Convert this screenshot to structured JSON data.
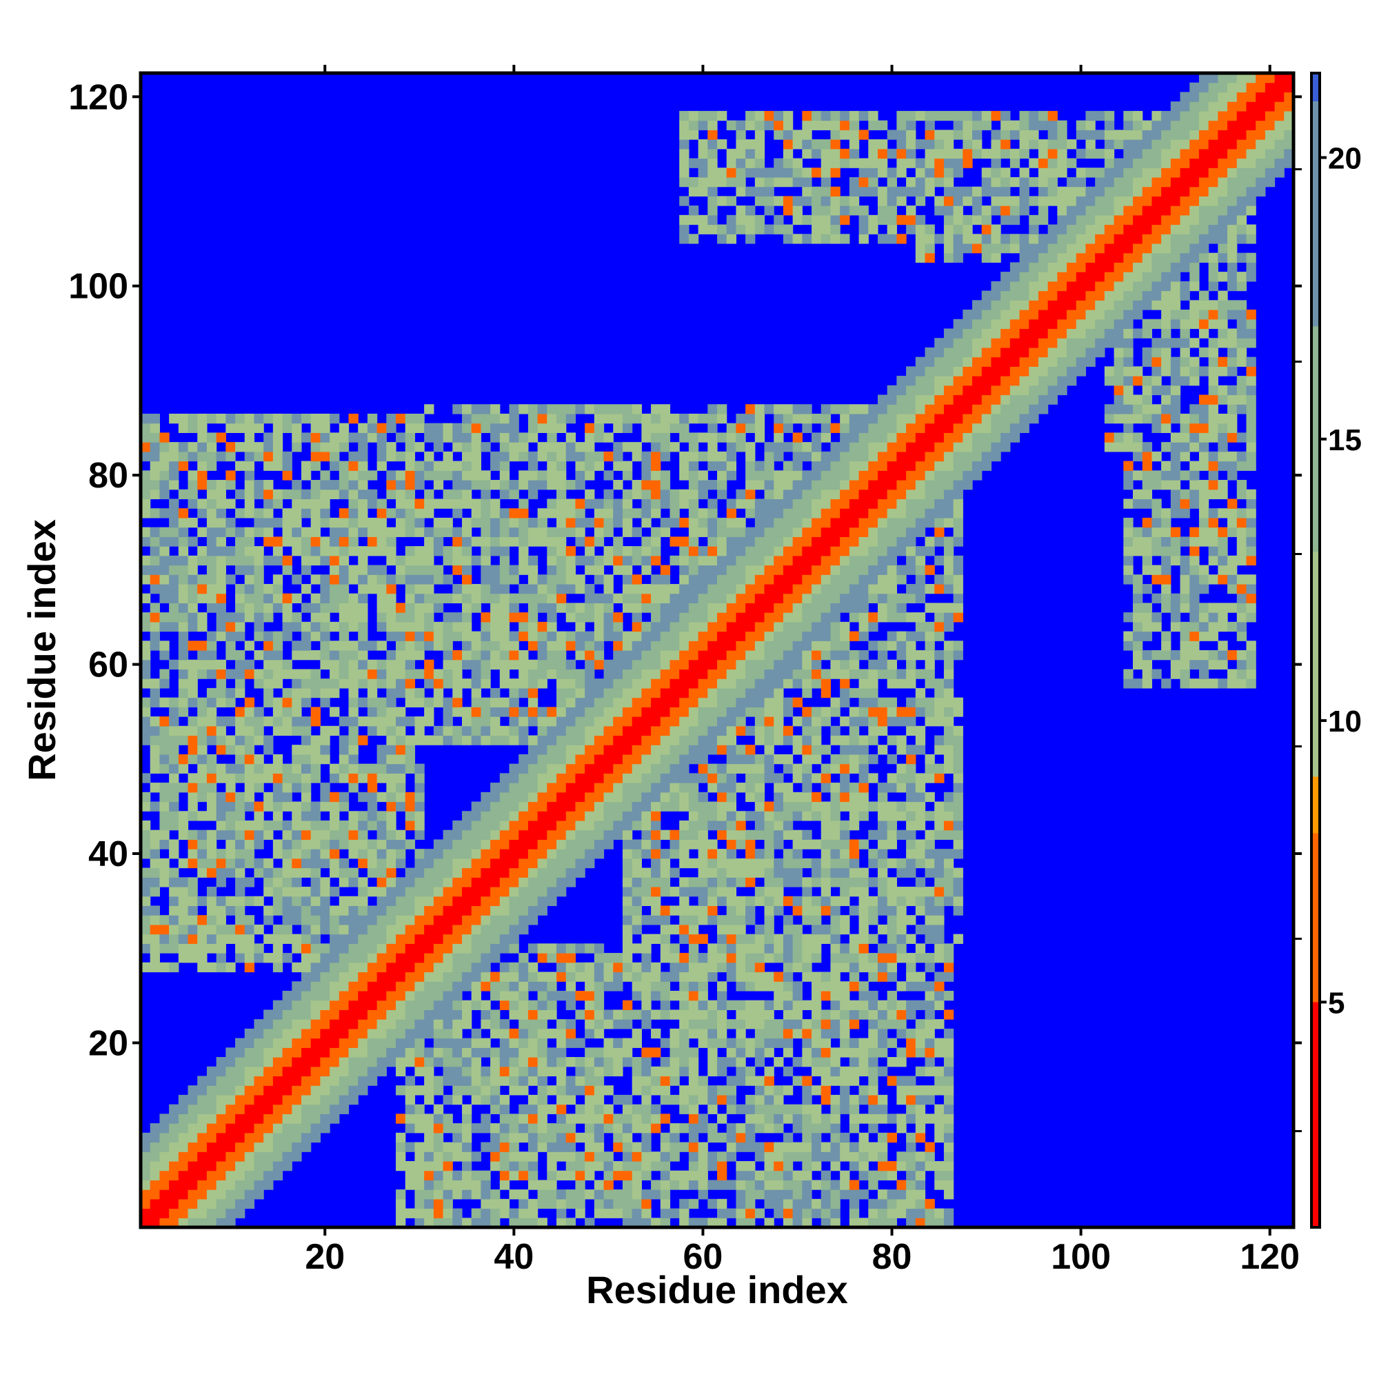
{
  "chart_data": {
    "type": "heatmap",
    "title": "",
    "xlabel": "Residue index",
    "ylabel": "Residue index",
    "xlim": [
      1,
      122
    ],
    "ylim": [
      1,
      122
    ],
    "n_residues": 122,
    "x_ticks": [
      20,
      40,
      60,
      80,
      100,
      120
    ],
    "y_ticks": [
      20,
      40,
      60,
      80,
      100,
      120
    ],
    "x_tick_labels": [
      "20",
      "40",
      "60",
      "80",
      "100",
      "120"
    ],
    "y_tick_labels": [
      "20",
      "40",
      "60",
      "80",
      "100",
      "120"
    ],
    "colorbar": {
      "range": [
        1,
        21.5
      ],
      "ticks": [
        5,
        10,
        15,
        20
      ],
      "tick_labels": [
        "5",
        "10",
        "15",
        "20"
      ],
      "stops": [
        {
          "value": 1,
          "color": "#ff0000"
        },
        {
          "value": 4,
          "color": "#ff0000"
        },
        {
          "value": 5,
          "color": "#ff6600"
        },
        {
          "value": 8,
          "color": "#ff9900"
        },
        {
          "value": 9,
          "color": "#a6c58c"
        },
        {
          "value": 13,
          "color": "#8fb592"
        },
        {
          "value": 17,
          "color": "#6f93aa"
        },
        {
          "value": 21,
          "color": "#3a5fd6"
        },
        {
          "value": 21.5,
          "color": "#0000ff"
        }
      ]
    },
    "value_description": "distance map; red = close contact on diagonal, orange/green = intermediate, blue = far",
    "features": {
      "diagonal_core_halfwidth": 1.2,
      "diagonal_band_halfwidth": 9,
      "off_diagonal_regions": [
        {
          "x_range": [
            1,
            30
          ],
          "y_range": [
            44,
            85
          ],
          "label": "upper-left lobe"
        },
        {
          "x_range": [
            30,
            58
          ],
          "y_range": [
            52,
            87
          ],
          "label": "upper-middle lobe"
        },
        {
          "x_range": [
            28,
            57
          ],
          "y_range": [
            1,
            30
          ],
          "label": "lower-middle lobe"
        },
        {
          "x_range": [
            53,
            86
          ],
          "y_range": [
            1,
            30
          ],
          "label": "lower-right lobe"
        },
        {
          "x_range": [
            64,
            87
          ],
          "y_range": [
            57,
            87
          ],
          "label": "central-right patch"
        },
        {
          "x_range": [
            58,
            87
          ],
          "y_range": [
            30,
            58
          ],
          "label": "middle-right ring"
        },
        {
          "x_range": [
            83,
            115
          ],
          "y_range": [
            103,
            118
          ],
          "label": "upper-right patch"
        },
        {
          "x_range": [
            105,
            118
          ],
          "y_range": [
            58,
            96
          ],
          "label": "right patch"
        }
      ]
    },
    "colors": {
      "background_far": "#0000ff",
      "contact_close": "#ff0000",
      "contact_near": "#ff8000",
      "intermediate_green": "#9dbe8e",
      "intermediate_blue": "#6f93aa"
    }
  }
}
